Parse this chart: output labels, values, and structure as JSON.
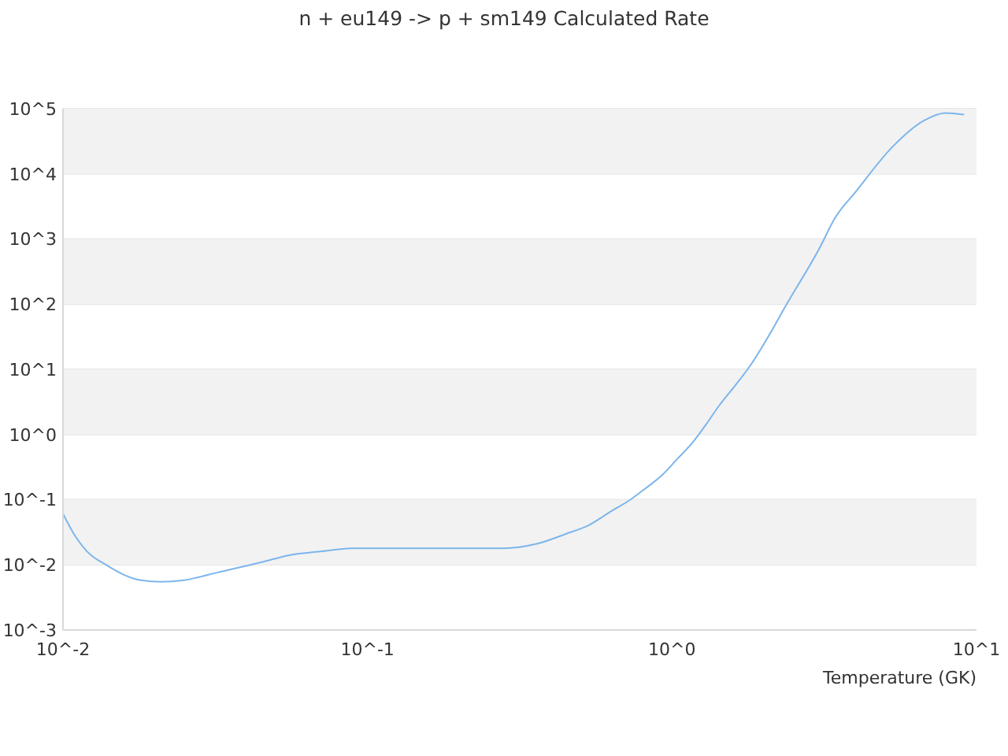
{
  "chart_data": {
    "type": "line",
    "title": "n + eu149 -> p + sm149 Calculated Rate",
    "xlabel": "Temperature (GK)",
    "series": [
      {
        "color": "#7cb5ec",
        "x": [
          0.01,
          0.011,
          0.012,
          0.014,
          0.016,
          0.018,
          0.021,
          0.025,
          0.028,
          0.032,
          0.039,
          0.045,
          0.055,
          0.07,
          0.089,
          0.11,
          0.25,
          0.28,
          0.36,
          0.45,
          0.53,
          0.63,
          0.73,
          0.82,
          0.93,
          1.04,
          1.17,
          1.29,
          1.43,
          1.61,
          1.82,
          2.08,
          2.38,
          3.04,
          3.43,
          4.01,
          5.3,
          6.7,
          7.9,
          9.1
        ],
        "values": [
          0.061,
          0.027,
          0.016,
          0.0097,
          0.0069,
          0.0058,
          0.0055,
          0.0058,
          0.0065,
          0.0076,
          0.0094,
          0.011,
          0.014,
          0.016,
          0.018,
          0.018,
          0.018,
          0.018,
          0.021,
          0.03,
          0.04,
          0.066,
          0.1,
          0.15,
          0.24,
          0.42,
          0.76,
          1.4,
          2.8,
          5.6,
          12,
          33,
          100,
          700,
          2100,
          5300,
          26000,
          65000,
          86000,
          81000
        ]
      }
    ],
    "log": "xy",
    "xlim": [
      0.01,
      10
    ],
    "ylim": [
      0.001,
      100000
    ],
    "xticks": [
      {
        "value": 0.01,
        "label": "10^-2"
      },
      {
        "value": 0.1,
        "label": "10^-1"
      },
      {
        "value": 1,
        "label": "10^0"
      },
      {
        "value": 10,
        "label": "10^1"
      }
    ],
    "yticks": [
      {
        "value": 0.001,
        "label": "10^-3"
      },
      {
        "value": 0.01,
        "label": "10^-2"
      },
      {
        "value": 0.1,
        "label": "10^-1"
      },
      {
        "value": 1,
        "label": "10^0"
      },
      {
        "value": 10,
        "label": "10^1"
      },
      {
        "value": 100,
        "label": "10^2"
      },
      {
        "value": 1000,
        "label": "10^3"
      },
      {
        "value": 10000,
        "label": "10^4"
      },
      {
        "value": 100000,
        "label": "10^5"
      }
    ],
    "grid": "y",
    "marker": "none",
    "bands": [
      {
        "axis": "y",
        "from": 0.01,
        "to": 0.1,
        "color": "#f2f2f2"
      },
      {
        "axis": "y",
        "from": 1,
        "to": 10,
        "color": "#f2f2f2"
      },
      {
        "axis": "y",
        "from": 100,
        "to": 1000,
        "color": "#f2f2f2"
      },
      {
        "axis": "y",
        "from": 10000,
        "to": 100000,
        "color": "#f2f2f2"
      }
    ]
  }
}
